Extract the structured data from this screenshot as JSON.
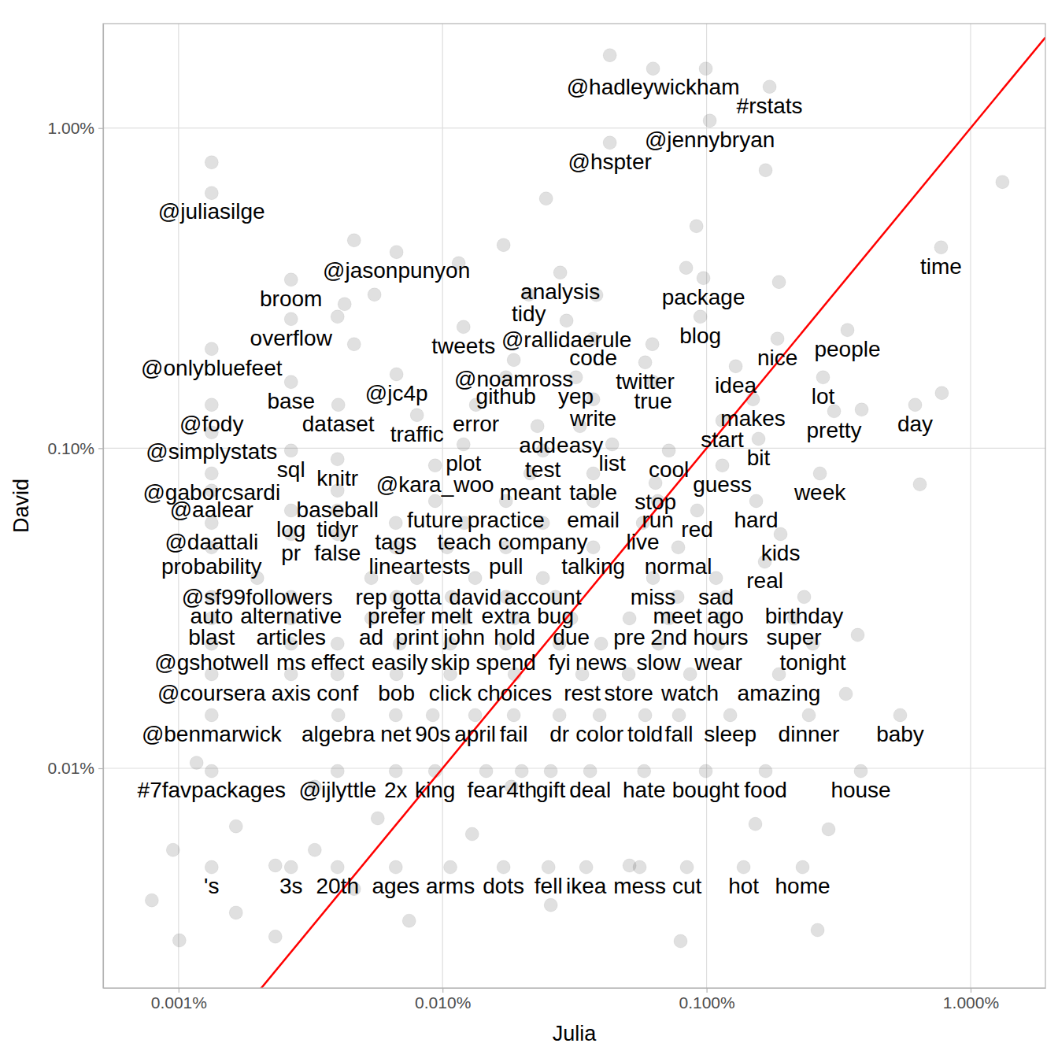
{
  "chart_data": {
    "type": "scatter",
    "x_label": "Julia",
    "y_label": "David",
    "log": true,
    "grid": true,
    "color": "#000000",
    "xlim": [
      0.000518,
      1.92
    ],
    "ylim": [
      0.00206,
      2.12
    ],
    "xticks": [
      {
        "value": 0.001,
        "label": "0.001%"
      },
      {
        "value": 0.01,
        "label": "0.010%"
      },
      {
        "value": 0.1,
        "label": "0.100%"
      },
      {
        "value": 1,
        "label": "1.000%"
      }
    ],
    "yticks": [
      {
        "value": 0.01,
        "label": "0.01%"
      },
      {
        "value": 0.1,
        "label": "0.10%"
      },
      {
        "value": 1,
        "label": "1.00%"
      }
    ],
    "reference_line": {
      "slope": 1,
      "intercept": 0,
      "color": "#ff0000"
    },
    "labels": [
      "@hadleywickham",
      "#rstats",
      "@jennybryan",
      "@hspter",
      "@juliasilge",
      "time",
      "@jasonpunyon",
      "analysis",
      "package",
      "broom",
      "tidy",
      "blog",
      "overflow",
      "@rallidaerule",
      "tweets",
      "people",
      "code",
      "nice",
      "@onlybluefeet",
      "@noamross",
      "twitter",
      "idea",
      "@jc4p",
      "github",
      "yep",
      "lot",
      "base",
      "true",
      "write",
      "makes",
      "@fody",
      "dataset",
      "error",
      "day",
      "pretty",
      "traffic",
      "start",
      "add",
      "easy",
      "@simplystats",
      "bit",
      "plot",
      "list",
      "test",
      "sql",
      "cool",
      "knitr",
      "@kara_woo",
      "guess",
      "@gaborcsardi",
      "meant",
      "table",
      "week",
      "stop",
      "@aalear",
      "baseball",
      "future",
      "practice",
      "email",
      "run",
      "hard",
      "log",
      "tidyr",
      "red",
      "@daattali",
      "tags",
      "teach",
      "company",
      "live",
      "pr",
      "false",
      "kids",
      "probability",
      "linear",
      "tests",
      "pull",
      "talking",
      "normal",
      "real",
      "@sf99followers",
      "rep",
      "gotta",
      "david",
      "account",
      "miss",
      "sad",
      "auto",
      "alternative",
      "prefer",
      "melt",
      "extra",
      "bug",
      "meet",
      "ago",
      "birthday",
      "blast",
      "articles",
      "ad",
      "print",
      "john",
      "hold",
      "due",
      "pre",
      "2nd",
      "hours",
      "super",
      "@gshotwell",
      "ms",
      "effect",
      "easily",
      "skip",
      "spend",
      "fyi",
      "news",
      "slow",
      "wear",
      "tonight",
      "@coursera",
      "axis",
      "conf",
      "bob",
      "click",
      "choices",
      "rest",
      "store",
      "watch",
      "amazing",
      "@benmarwick",
      "algebra",
      "net",
      "90s",
      "april",
      "fail",
      "dr",
      "color",
      "told",
      "fall",
      "sleep",
      "dinner",
      "baby",
      "#7favpackages",
      "@ijlyttle",
      "2x",
      "king",
      "fear",
      "4th",
      "gift",
      "deal",
      "hate",
      "bought",
      "food",
      "house",
      "'s",
      "3s",
      "20th",
      "ages",
      "arms",
      "dots",
      "fell",
      "ikea",
      "mess",
      "cut",
      "hot",
      "home",
      null,
      null,
      null,
      null,
      null,
      null,
      null,
      null,
      null,
      null,
      null,
      null,
      null,
      null,
      null,
      null,
      null,
      null,
      null,
      null,
      null,
      null,
      null,
      null,
      null,
      null,
      null,
      null,
      null,
      null,
      null,
      null,
      null,
      null,
      null,
      null,
      null,
      null,
      null,
      null,
      null,
      null,
      null,
      null
    ],
    "x": [
      0.0627,
      0.1732,
      0.1028,
      0.043,
      0.001334,
      0.773,
      0.00669,
      0.0279,
      0.0973,
      0.002668,
      0.02121,
      0.0947,
      0.002668,
      0.02947,
      0.012,
      0.3416,
      0.03722,
      0.1855,
      0.001334,
      0.01861,
      0.05855,
      0.1289,
      0.00669,
      0.01738,
      0.032,
      0.2761,
      0.002668,
      0.0627,
      0.03722,
      0.1499,
      0.001334,
      0.004027,
      0.01338,
      0.6165,
      0.304,
      0.008,
      0.1147,
      0.02287,
      0.03313,
      0.001334,
      0.1573,
      0.012,
      0.04389,
      0.02399,
      0.002668,
      0.07194,
      0.004,
      0.00937,
      0.1147,
      0.001334,
      0.0215,
      0.03722,
      0.2687,
      0.06403,
      0.001334,
      0.004,
      0.00937,
      0.01738,
      0.03722,
      0.06535,
      0.1541,
      0.002668,
      0.004,
      0.0921,
      0.001334,
      0.00665,
      0.01208,
      0.02399,
      0.05735,
      0.002668,
      0.004,
      0.1906,
      0.001334,
      0.00665,
      0.0104,
      0.01738,
      0.03722,
      0.0781,
      0.1662,
      0.001986,
      0.00537,
      0.008,
      0.01329,
      0.02399,
      0.0627,
      0.1086,
      0.001334,
      0.002668,
      0.00669,
      0.01082,
      0.01738,
      0.02677,
      0.0776,
      0.1179,
      0.2342,
      0.001334,
      0.002668,
      0.00537,
      0.008,
      0.01208,
      0.01874,
      0.03072,
      0.05103,
      0.07194,
      0.1131,
      0.2142,
      0.001334,
      0.002668,
      0.004,
      0.00688,
      0.0107,
      0.01738,
      0.02771,
      0.03988,
      0.0658,
      0.1108,
      0.2526,
      0.001334,
      0.002668,
      0.004,
      0.00669,
      0.0107,
      0.01874,
      0.03381,
      0.05069,
      0.0866,
      0.188,
      0.001334,
      0.004027,
      0.00665,
      0.00918,
      0.01329,
      0.01861,
      0.02771,
      0.03933,
      0.05855,
      0.0786,
      0.1229,
      0.244,
      0.541,
      0.001334,
      0.004,
      0.00665,
      0.00937,
      0.01463,
      0.01994,
      0.0257,
      0.03622,
      0.058,
      0.0993,
      0.1673,
      0.3839,
      0.001334,
      0.002668,
      0.004,
      0.00665,
      0.0107,
      0.01702,
      0.02518,
      0.035,
      0.05579,
      0.08424,
      0.1381,
      0.231,
      0.043,
      0.0993,
      0.001334,
      0.1673,
      1.32,
      0.02466,
      0.0915,
      0.004621,
      0.01702,
      0.01151,
      0.08367,
      0.188,
      0.00552,
      0.03825,
      0.004255,
      0.004,
      0.004621,
      0.0623,
      0.6423,
      0.778,
      0.3866,
      0.3735,
      0.2897,
      0.2633,
      0.0797,
      0.001007,
      0.337,
      0.153,
      0.000792,
      0.00328,
      0.002326,
      0.004621,
      0.00165,
      0.00747,
      0.00117,
      0.01294,
      0.0257,
      0.05103,
      0.000953,
      0.00165,
      0.00328,
      0.00568,
      0.01823,
      0.002326
    ],
    "y": [
      1.534,
      1.346,
      1.055,
      0.9,
      0.627,
      0.424,
      0.41,
      0.3536,
      0.34,
      0.336,
      0.3018,
      0.2575,
      0.2532,
      0.2503,
      0.2392,
      0.2339,
      0.2198,
      0.2198,
      0.2042,
      0.1886,
      0.1854,
      0.1803,
      0.1702,
      0.1665,
      0.1665,
      0.1665,
      0.161,
      0.161,
      0.1421,
      0.1421,
      0.1366,
      0.1366,
      0.1366,
      0.1366,
      0.1305,
      0.1269,
      0.1219,
      0.1172,
      0.1172,
      0.112,
      0.107,
      0.1028,
      0.1028,
      0.0983,
      0.0983,
      0.0983,
      0.0924,
      0.0883,
      0.0883,
      0.0834,
      0.0834,
      0.0834,
      0.0834,
      0.0779,
      0.0737,
      0.0737,
      0.0684,
      0.0684,
      0.0684,
      0.0684,
      0.0684,
      0.0639,
      0.0639,
      0.0639,
      0.0584,
      0.0584,
      0.0584,
      0.0584,
      0.0584,
      0.0539,
      0.0539,
      0.0539,
      0.049,
      0.049,
      0.049,
      0.049,
      0.049,
      0.049,
      0.0442,
      0.0393,
      0.0393,
      0.0393,
      0.0393,
      0.0393,
      0.0393,
      0.0393,
      0.0343,
      0.0343,
      0.0343,
      0.0343,
      0.0343,
      0.0343,
      0.0343,
      0.0343,
      0.0343,
      0.0294,
      0.0294,
      0.0294,
      0.0294,
      0.0294,
      0.0294,
      0.0294,
      0.0294,
      0.0294,
      0.0294,
      0.0294,
      0.0245,
      0.0245,
      0.0245,
      0.0245,
      0.0245,
      0.0245,
      0.0245,
      0.0245,
      0.0245,
      0.0245,
      0.0245,
      0.01968,
      0.01968,
      0.01968,
      0.01968,
      0.01968,
      0.01968,
      0.01968,
      0.01968,
      0.01968,
      0.01968,
      0.01466,
      0.01466,
      0.01466,
      0.01466,
      0.01466,
      0.01466,
      0.01466,
      0.01466,
      0.01466,
      0.01466,
      0.01466,
      0.01466,
      0.01466,
      0.0098,
      0.0098,
      0.0098,
      0.0098,
      0.0098,
      0.0098,
      0.0098,
      0.0098,
      0.0098,
      0.0098,
      0.0098,
      0.0098,
      0.00491,
      0.00491,
      0.00491,
      0.00491,
      0.00491,
      0.00491,
      0.00491,
      0.00491,
      0.00491,
      0.00491,
      0.00491,
      0.00491,
      1.689,
      1.534,
      0.7816,
      0.7386,
      0.6785,
      0.6024,
      0.494,
      0.4461,
      0.4312,
      0.3785,
      0.366,
      0.3305,
      0.3018,
      0.301,
      0.2819,
      0.2575,
      0.2113,
      0.2113,
      0.0771,
      0.1487,
      0.132,
      0.0261,
      0.00645,
      0.003123,
      0.002884,
      0.0029,
      0.01708,
      0.0067,
      0.00387,
      0.00876,
      0.00497,
      0.0042,
      0.00659,
      0.00334,
      0.0104,
      0.00623,
      0.00374,
      0.00497,
      0.00556,
      0.00354,
      0.00556,
      0.00698,
      0.00876,
      0.00298
    ]
  }
}
